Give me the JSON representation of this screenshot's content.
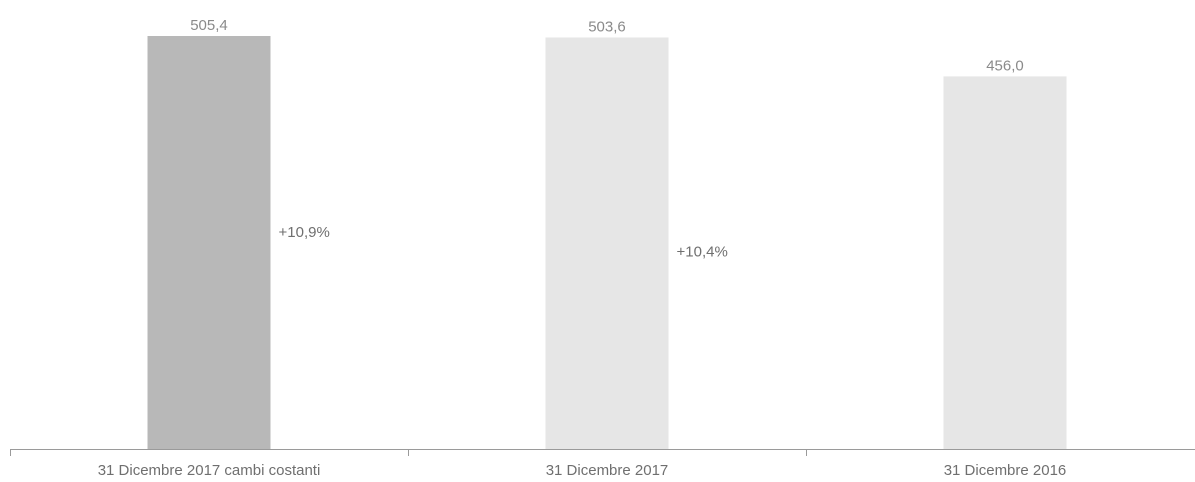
{
  "chart_data": {
    "type": "bar",
    "categories": [
      "31 Dicembre 2017 cambi costanti",
      "31 Dicembre 2017",
      "31 Dicembre 2016"
    ],
    "values": [
      505.4,
      503.6,
      456.0
    ],
    "value_labels": [
      "505,4",
      "503,6",
      "456,0"
    ],
    "growth_labels": [
      "+10,9%",
      "+10,4%"
    ],
    "bar_colors": [
      "#b8b8b8",
      "#e6e6e6",
      "#e6e6e6"
    ],
    "axis_color": "#9a9a9a",
    "ylim": [
      0,
      505.4
    ],
    "grid": false,
    "legend": "none",
    "title": "",
    "xlabel": "",
    "ylabel": ""
  }
}
